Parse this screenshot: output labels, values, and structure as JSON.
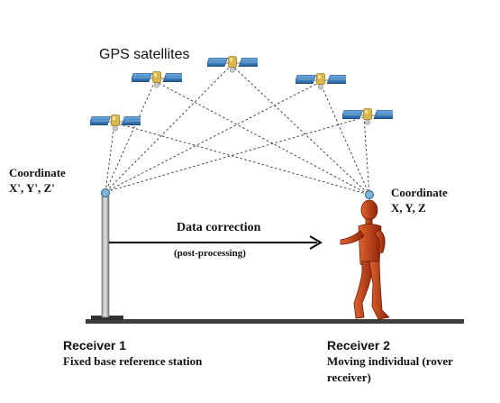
{
  "satellites_label": "GPS satellites",
  "left_coordinate": {
    "line1": "Coordinate",
    "line2": "X', Y', Z'"
  },
  "right_coordinate": {
    "line1": "Coordinate",
    "line2": "X, Y, Z"
  },
  "arrow": {
    "label": "Data correction",
    "sublabel": "(post-processing)"
  },
  "receiver1": {
    "title": "Receiver 1",
    "description": "Fixed base reference station"
  },
  "receiver2": {
    "title": "Receiver 2",
    "description_line1": "Moving individual (rover",
    "description_line2": "receiver)"
  },
  "colors": {
    "figure": "#c23a12",
    "panel": "#2f78b6",
    "line": "#333333",
    "ground": "#3d3d3d"
  }
}
